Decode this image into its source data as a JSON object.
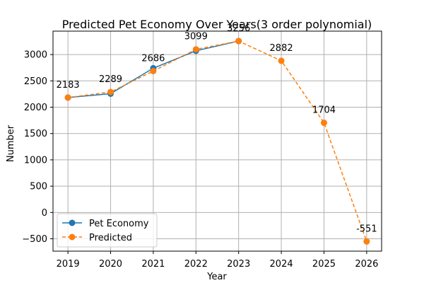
{
  "chart_data": {
    "type": "line",
    "title": "Predicted Pet Economy Over Years(3 order polynomial)",
    "xlabel": "Year",
    "ylabel": "Number",
    "x": [
      2019,
      2020,
      2021,
      2022,
      2023,
      2024,
      2025,
      2026
    ],
    "xlim": [
      2018.65,
      2026.35
    ],
    "ylim": [
      -735,
      3445
    ],
    "yticks": [
      -500,
      0,
      500,
      1000,
      1500,
      2000,
      2500,
      3000
    ],
    "grid": true,
    "legend_position": "lower-left",
    "series": [
      {
        "name": "Pet Economy",
        "color": "#1f77b4",
        "linestyle": "solid",
        "marker": "circle",
        "x": [
          2019,
          2020,
          2021,
          2022,
          2023
        ],
        "values": [
          2183,
          2257,
          2741,
          3071,
          3256
        ]
      },
      {
        "name": "Predicted",
        "color": "#ff7f0e",
        "linestyle": "dashed",
        "marker": "circle",
        "x": [
          2019,
          2020,
          2021,
          2022,
          2023,
          2024,
          2025,
          2026
        ],
        "values": [
          2183,
          2289,
          2686,
          3099,
          3256,
          2882,
          1704,
          -551
        ]
      }
    ],
    "data_labels": [
      "2183",
      "2289",
      "2686",
      "3099",
      "3256",
      "2882",
      "1704",
      "-551"
    ]
  }
}
